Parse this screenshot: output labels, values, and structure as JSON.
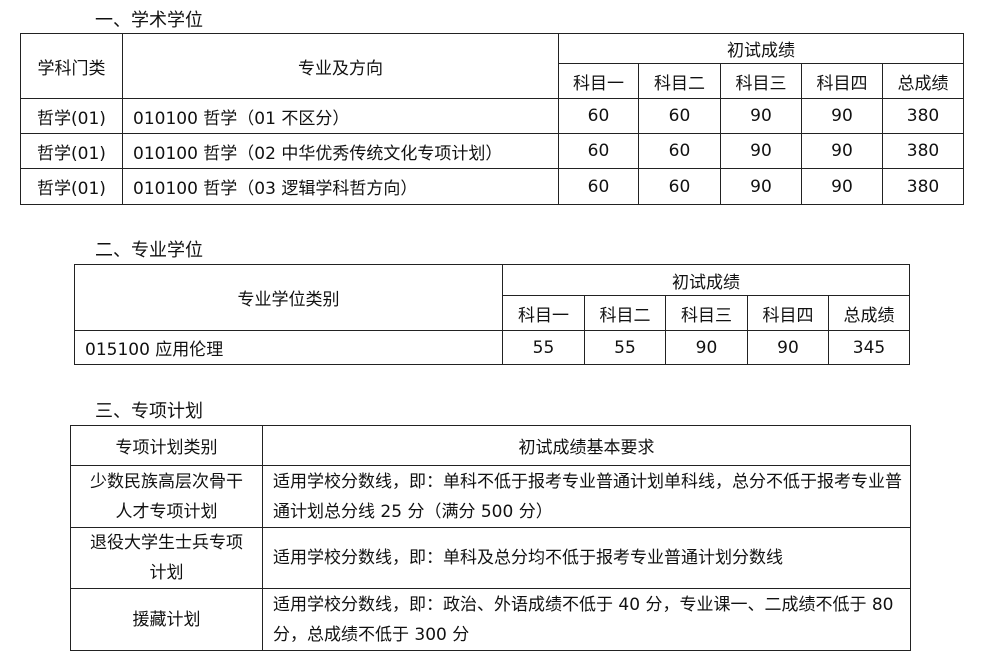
{
  "section1": {
    "heading": "一、学术学位",
    "headers": {
      "category": "学科门类",
      "major": "专业及方向",
      "initial": "初试成绩",
      "subjects": [
        "科目一",
        "科目二",
        "科目三",
        "科目四",
        "总成绩"
      ]
    },
    "rows": [
      {
        "category": "哲学(01)",
        "major": "010100 哲学（01 不区分）",
        "scores": [
          "60",
          "60",
          "90",
          "90",
          "380"
        ]
      },
      {
        "category": "哲学(01)",
        "major": "010100 哲学（02 中华优秀传统文化专项计划）",
        "scores": [
          "60",
          "60",
          "90",
          "90",
          "380"
        ]
      },
      {
        "category": "哲学(01)",
        "major": "010100 哲学（03 逻辑学科哲方向）",
        "scores": [
          "60",
          "60",
          "90",
          "90",
          "380"
        ]
      }
    ]
  },
  "section2": {
    "heading": "二、专业学位",
    "headers": {
      "category": "专业学位类别",
      "initial": "初试成绩",
      "subjects": [
        "科目一",
        "科目二",
        "科目三",
        "科目四",
        "总成绩"
      ]
    },
    "rows": [
      {
        "category": "015100 应用伦理",
        "scores": [
          "55",
          "55",
          "90",
          "90",
          "345"
        ]
      }
    ]
  },
  "section3": {
    "heading": "三、专项计划",
    "headers": {
      "category": "专项计划类别",
      "requirement": "初试成绩基本要求"
    },
    "rows": [
      {
        "category": "少数民族高层次骨干人才专项计划",
        "requirement": "适用学校分数线，即：单科不低于报考专业普通计划单科线，总分不低于报考专业普通计划总分线 25 分（满分 500 分）"
      },
      {
        "category": "退役大学生士兵专项计划",
        "requirement": "适用学校分数线，即：单科及总分均不低于报考专业普通计划分数线"
      },
      {
        "category": "援藏计划",
        "requirement": "适用学校分数线，即：政治、外语成绩不低于 40 分，专业课一、二成绩不低于 80 分，总成绩不低于 300 分"
      }
    ]
  }
}
